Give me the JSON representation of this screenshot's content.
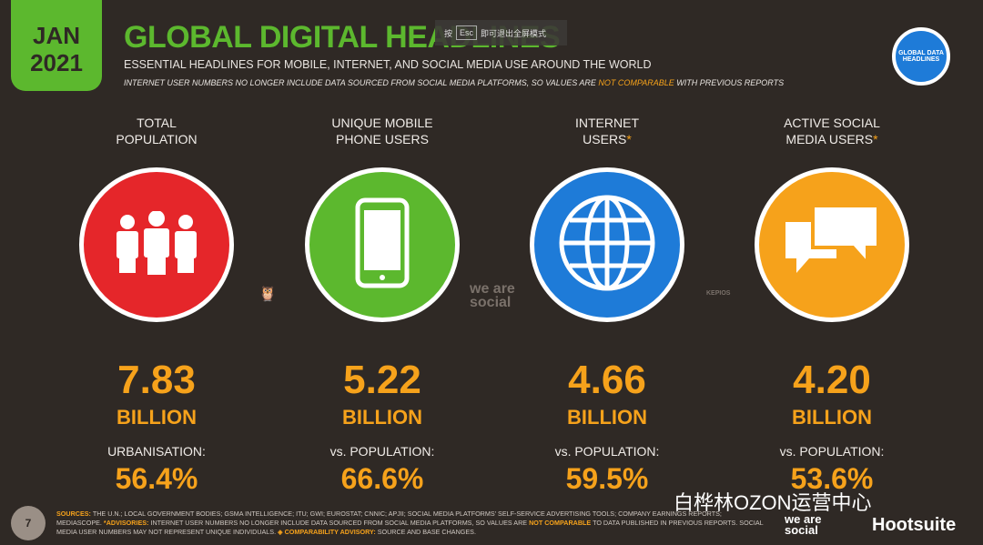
{
  "header": {
    "date_month": "JAN",
    "date_year": "2021",
    "title": "GLOBAL DIGITAL HEADLINES",
    "subtitle": "ESSENTIAL HEADLINES FOR MOBILE, INTERNET, AND SOCIAL MEDIA USE AROUND THE WORLD",
    "note_pre": "INTERNET USER NUMBERS NO LONGER INCLUDE DATA SOURCED FROM SOCIAL MEDIA PLATFORMS, SO VALUES ARE ",
    "note_hl": "NOT COMPARABLE",
    "note_post": " WITH PREVIOUS REPORTS",
    "badge": "GLOBAL DATA HEADLINES"
  },
  "toast": {
    "pre": "按",
    "key": "Esc",
    "post": "即可退出全屏模式"
  },
  "stats": [
    {
      "label1": "TOTAL",
      "label2": "POPULATION",
      "ast": "",
      "icon": "people-icon",
      "color": "#e5262a",
      "value": "7.83",
      "unit": "BILLION",
      "sub": "URBANISATION:",
      "pct": "56.4%"
    },
    {
      "label1": "UNIQUE MOBILE",
      "label2": "PHONE USERS",
      "ast": "",
      "icon": "phone-icon",
      "color": "#5cb82e",
      "value": "5.22",
      "unit": "BILLION",
      "sub": "vs. POPULATION:",
      "pct": "66.6%"
    },
    {
      "label1": "INTERNET",
      "label2": "USERS",
      "ast": "*",
      "icon": "globe-icon",
      "color": "#1e7bd8",
      "value": "4.66",
      "unit": "BILLION",
      "sub": "vs. POPULATION:",
      "pct": "59.5%"
    },
    {
      "label1": "ACTIVE SOCIAL",
      "label2": "MEDIA USERS",
      "ast": "*",
      "icon": "chat-icon",
      "color": "#f6a21b",
      "value": "4.20",
      "unit": "BILLION",
      "sub": "vs. POPULATION:",
      "pct": "53.6%"
    }
  ],
  "logos": {
    "wearesocial": "we are social",
    "kepios": "KEPIOS"
  },
  "footer": {
    "page": "7",
    "s_label": "SOURCES:",
    "s_text": " THE U.N.; LOCAL GOVERNMENT BODIES; GSMA INTELLIGENCE; ITU; GWI; EUROSTAT; CNNIC; APJII; SOCIAL MEDIA PLATFORMS' SELF-SERVICE ADVERTISING TOOLS; COMPANY EARNINGS REPORTS; MEDIASCOPE. ",
    "a_label": "*ADVISORIES:",
    "a_text": " INTERNET USER NUMBERS NO LONGER INCLUDE DATA SOURCED FROM SOCIAL MEDIA PLATFORMS, SO VALUES ARE ",
    "a_hl": "NOT COMPARABLE",
    "a_text2": " TO DATA PUBLISHED IN PREVIOUS REPORTS. SOCIAL MEDIA USER NUMBERS MAY NOT REPRESENT UNIQUE INDIVIDUALS. ",
    "c_label": "◈ COMPARABILITY ADVISORY:",
    "c_text": " SOURCE AND BASE CHANGES.",
    "watermark": "白桦林OZON运营中心",
    "brand1": "we are social",
    "brand2": "Hootsuite"
  }
}
